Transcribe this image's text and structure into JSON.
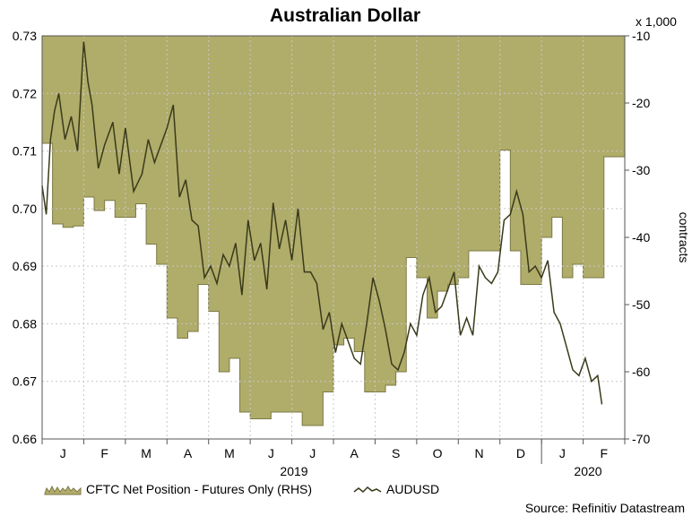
{
  "chart_data": {
    "type": "line",
    "title": "Australian Dollar",
    "source": "Source: Refinitiv Datastream",
    "left_axis": {
      "label": "",
      "ylim": [
        0.66,
        0.73
      ],
      "ticks": [
        "0.73",
        "0.72",
        "0.71",
        "0.70",
        "0.69",
        "0.68",
        "0.67",
        "0.66"
      ],
      "tick_values": [
        0.73,
        0.72,
        0.71,
        0.7,
        0.69,
        0.68,
        0.67,
        0.66
      ]
    },
    "right_axis": {
      "label": "contracts",
      "unit": "x 1,000",
      "ylim": [
        -70,
        -10
      ],
      "ticks": [
        "-10",
        "-20",
        "-30",
        "-40",
        "-50",
        "-60",
        "-70"
      ],
      "tick_values": [
        -10,
        -20,
        -30,
        -40,
        -50,
        -60,
        -70
      ]
    },
    "x_axis": {
      "months": [
        "J",
        "F",
        "M",
        "A",
        "M",
        "J",
        "J",
        "A",
        "S",
        "O",
        "N",
        "D",
        "J",
        "F"
      ],
      "years": [
        "2019",
        "2020"
      ]
    },
    "legend": {
      "cftc": "CFTC Net Position - Futures Only (RHS)",
      "audusd": "AUDUSD"
    },
    "series": [
      {
        "name": "CFTC Net Position - Futures Only (RHS)",
        "axis": "right",
        "style": "area",
        "color": "#b0ac6a",
        "x": [
          0,
          0.25,
          0.5,
          0.75,
          1,
          1.25,
          1.5,
          1.75,
          2,
          2.25,
          2.5,
          2.75,
          3,
          3.25,
          3.5,
          3.75,
          4,
          4.25,
          4.5,
          4.75,
          5,
          5.25,
          5.5,
          5.75,
          6,
          6.25,
          6.5,
          6.75,
          7,
          7.25,
          7.5,
          7.75,
          8,
          8.25,
          8.5,
          8.75,
          9,
          9.25,
          9.5,
          9.75,
          10,
          10.25,
          10.5,
          10.75,
          11,
          11.25,
          11.5,
          11.75,
          12,
          12.25,
          12.5,
          12.75,
          13,
          13.25,
          13.5
        ],
        "values": [
          -26,
          -38,
          -38.5,
          -38.3,
          -34,
          -36,
          -34.5,
          -37,
          -37,
          -35,
          -41,
          -44,
          -52,
          -55,
          -54,
          -47,
          -51,
          -60,
          -58,
          -66,
          -67,
          -67,
          -66,
          -66,
          -66,
          -68,
          -68,
          -63,
          -56,
          -55,
          -57,
          -63,
          -63,
          -62,
          -60,
          -43,
          -46,
          -52,
          -48,
          -47,
          -46,
          -42,
          -42,
          -42,
          -27,
          -42,
          -47,
          -47,
          -40,
          -37,
          -46,
          -44,
          -46,
          -46,
          -28
        ]
      },
      {
        "name": "AUDUSD",
        "axis": "left",
        "style": "line",
        "color": "#3a3a1a",
        "x": [
          0,
          0.1,
          0.2,
          0.3,
          0.4,
          0.55,
          0.7,
          0.85,
          1,
          1.1,
          1.2,
          1.35,
          1.5,
          1.7,
          1.85,
          2,
          2.2,
          2.4,
          2.55,
          2.7,
          2.85,
          3,
          3.15,
          3.3,
          3.45,
          3.6,
          3.75,
          3.9,
          4.05,
          4.2,
          4.35,
          4.5,
          4.65,
          4.8,
          4.95,
          5.1,
          5.25,
          5.4,
          5.55,
          5.7,
          5.85,
          6,
          6.15,
          6.3,
          6.45,
          6.6,
          6.75,
          6.9,
          7.05,
          7.2,
          7.35,
          7.5,
          7.65,
          7.8,
          7.95,
          8.1,
          8.25,
          8.4,
          8.55,
          8.7,
          8.85,
          9,
          9.15,
          9.3,
          9.45,
          9.6,
          9.75,
          9.9,
          10.05,
          10.2,
          10.35,
          10.5,
          10.65,
          10.8,
          10.95,
          11.1,
          11.25,
          11.4,
          11.55,
          11.7,
          11.85,
          12,
          12.15,
          12.3,
          12.45,
          12.6,
          12.75,
          12.9,
          13.05,
          13.2,
          13.35,
          13.45
        ],
        "values": [
          0.704,
          0.699,
          0.712,
          0.717,
          0.72,
          0.712,
          0.716,
          0.71,
          0.729,
          0.722,
          0.718,
          0.707,
          0.711,
          0.715,
          0.706,
          0.714,
          0.703,
          0.706,
          0.712,
          0.708,
          0.711,
          0.714,
          0.718,
          0.702,
          0.705,
          0.698,
          0.697,
          0.688,
          0.69,
          0.687,
          0.692,
          0.69,
          0.694,
          0.685,
          0.698,
          0.691,
          0.694,
          0.686,
          0.701,
          0.693,
          0.698,
          0.691,
          0.7,
          0.689,
          0.689,
          0.687,
          0.679,
          0.682,
          0.675,
          0.68,
          0.677,
          0.674,
          0.673,
          0.68,
          0.688,
          0.684,
          0.679,
          0.673,
          0.672,
          0.675,
          0.68,
          0.678,
          0.685,
          0.688,
          0.682,
          0.683,
          0.686,
          0.689,
          0.678,
          0.681,
          0.678,
          0.69,
          0.688,
          0.687,
          0.689,
          0.698,
          0.699,
          0.703,
          0.699,
          0.689,
          0.69,
          0.688,
          0.691,
          0.682,
          0.68,
          0.676,
          0.672,
          0.671,
          0.674,
          0.67,
          0.671,
          0.666
        ]
      }
    ]
  }
}
